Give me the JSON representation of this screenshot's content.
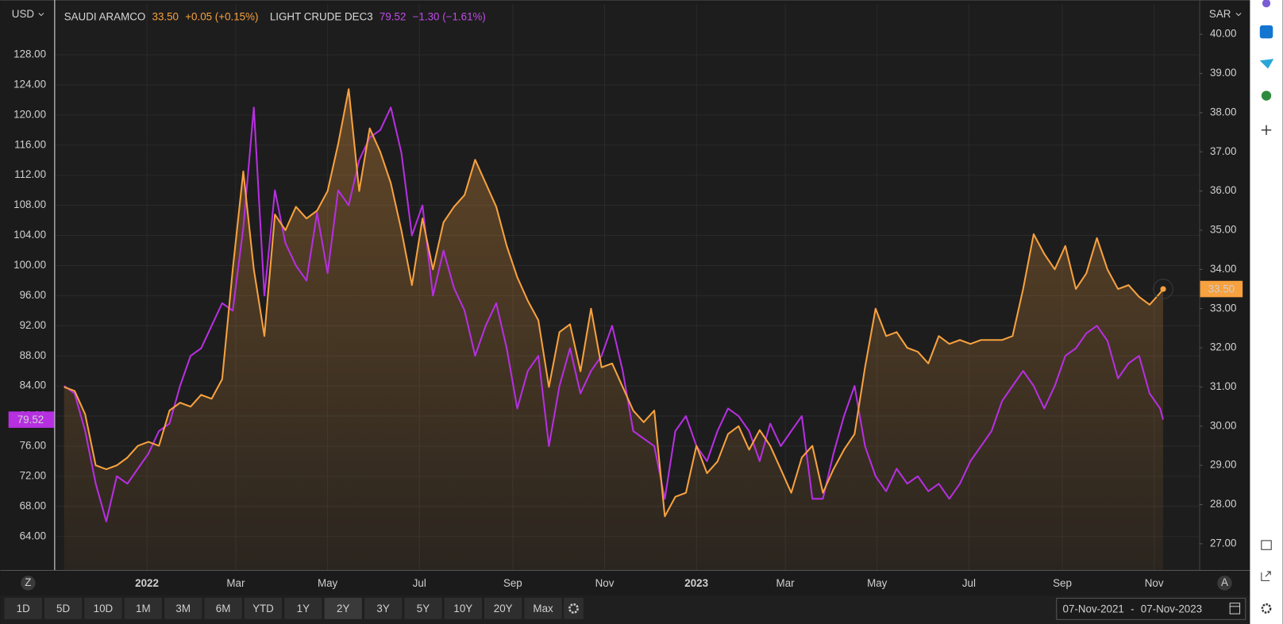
{
  "chart_data": {
    "type": "line",
    "y_label": "USD",
    "y2_label": "SAR",
    "grid": true,
    "x": [
      "2021-11-07",
      "2021-11-14",
      "2021-11-21",
      "2021-11-28",
      "2021-12-05",
      "2021-12-12",
      "2021-12-19",
      "2021-12-26",
      "2022-01-02",
      "2022-01-09",
      "2022-01-16",
      "2022-01-23",
      "2022-01-30",
      "2022-02-06",
      "2022-02-13",
      "2022-02-20",
      "2022-02-27",
      "2022-03-06",
      "2022-03-13",
      "2022-03-20",
      "2022-03-27",
      "2022-04-03",
      "2022-04-10",
      "2022-04-17",
      "2022-04-24",
      "2022-05-01",
      "2022-05-08",
      "2022-05-15",
      "2022-05-22",
      "2022-05-29",
      "2022-06-05",
      "2022-06-12",
      "2022-06-19",
      "2022-06-26",
      "2022-07-03",
      "2022-07-10",
      "2022-07-17",
      "2022-07-24",
      "2022-07-31",
      "2022-08-07",
      "2022-08-14",
      "2022-08-21",
      "2022-08-28",
      "2022-09-04",
      "2022-09-11",
      "2022-09-18",
      "2022-09-25",
      "2022-10-02",
      "2022-10-09",
      "2022-10-16",
      "2022-10-23",
      "2022-10-30",
      "2022-11-06",
      "2022-11-13",
      "2022-11-20",
      "2022-11-27",
      "2022-12-04",
      "2022-12-11",
      "2022-12-18",
      "2022-12-25",
      "2023-01-01",
      "2023-01-08",
      "2023-01-15",
      "2023-01-22",
      "2023-01-29",
      "2023-02-05",
      "2023-02-12",
      "2023-02-19",
      "2023-02-26",
      "2023-03-05",
      "2023-03-12",
      "2023-03-19",
      "2023-03-26",
      "2023-04-02",
      "2023-04-09",
      "2023-04-16",
      "2023-04-23",
      "2023-04-30",
      "2023-05-07",
      "2023-05-14",
      "2023-05-21",
      "2023-05-28",
      "2023-06-04",
      "2023-06-11",
      "2023-06-18",
      "2023-06-25",
      "2023-07-02",
      "2023-07-09",
      "2023-07-16",
      "2023-07-23",
      "2023-07-30",
      "2023-08-06",
      "2023-08-13",
      "2023-08-20",
      "2023-08-27",
      "2023-09-03",
      "2023-09-10",
      "2023-09-17",
      "2023-09-24",
      "2023-10-01",
      "2023-10-08",
      "2023-10-15",
      "2023-10-22",
      "2023-10-29",
      "2023-11-05",
      "2023-11-07"
    ],
    "xlim": [
      "2021-11-01",
      "2023-12-01"
    ],
    "xticks": [
      {
        "value": "2022-01-01",
        "label": "2022"
      },
      {
        "value": "2022-03-01",
        "label": "Mar"
      },
      {
        "value": "2022-05-01",
        "label": "May"
      },
      {
        "value": "2022-07-01",
        "label": "Jul"
      },
      {
        "value": "2022-09-01",
        "label": "Sep"
      },
      {
        "value": "2022-11-01",
        "label": "Nov"
      },
      {
        "value": "2023-01-01",
        "label": "2023"
      },
      {
        "value": "2023-03-01",
        "label": "Mar"
      },
      {
        "value": "2023-05-01",
        "label": "May"
      },
      {
        "value": "2023-07-01",
        "label": "Jul"
      },
      {
        "value": "2023-09-01",
        "label": "Sep"
      },
      {
        "value": "2023-11-01",
        "label": "Nov"
      }
    ],
    "ylim": [
      59.54,
      134.74
    ],
    "yticks": [
      {
        "value": 64,
        "label": "64.00"
      },
      {
        "value": 68,
        "label": "68.00"
      },
      {
        "value": 72,
        "label": "72.00"
      },
      {
        "value": 76,
        "label": "76.00"
      },
      {
        "value": 80,
        "label": "80.00"
      },
      {
        "value": 84,
        "label": "84.00"
      },
      {
        "value": 88,
        "label": "88.00"
      },
      {
        "value": 92,
        "label": "92.00"
      },
      {
        "value": 96,
        "label": "96.00"
      },
      {
        "value": 100,
        "label": "100.00"
      },
      {
        "value": 104,
        "label": "104.00"
      },
      {
        "value": 108,
        "label": "108.00"
      },
      {
        "value": 112,
        "label": "112.00"
      },
      {
        "value": 116,
        "label": "116.00"
      },
      {
        "value": 120,
        "label": "120.00"
      },
      {
        "value": 124,
        "label": "124.00"
      },
      {
        "value": 128,
        "label": "128.00"
      }
    ],
    "y2lim": [
      26.33,
      40.77
    ],
    "y2ticks": [
      {
        "value": 27,
        "label": "27.00"
      },
      {
        "value": 28,
        "label": "28.00"
      },
      {
        "value": 29,
        "label": "29.00"
      },
      {
        "value": 30,
        "label": "30.00"
      },
      {
        "value": 31,
        "label": "31.00"
      },
      {
        "value": 32,
        "label": "32.00"
      },
      {
        "value": 33,
        "label": "33.00"
      },
      {
        "value": 34,
        "label": "34.00"
      },
      {
        "value": 35,
        "label": "35.00"
      },
      {
        "value": 36,
        "label": "36.00"
      },
      {
        "value": 37,
        "label": "37.00"
      },
      {
        "value": 38,
        "label": "38.00"
      },
      {
        "value": 39,
        "label": "39.00"
      },
      {
        "value": 40,
        "label": "40.00"
      }
    ],
    "series": [
      {
        "name": "SAUDI ARAMCO",
        "color": "#f7a13f",
        "axis": "y2",
        "area": true,
        "last": "33.50",
        "change": "+0.05 (+0.15%)",
        "values": [
          31.0,
          30.9,
          30.3,
          29.0,
          28.9,
          29.0,
          29.2,
          29.5,
          29.6,
          29.5,
          30.4,
          30.6,
          30.5,
          30.8,
          30.7,
          31.2,
          34.0,
          36.5,
          34.0,
          32.3,
          35.4,
          35.0,
          35.6,
          35.3,
          35.5,
          36.0,
          37.2,
          38.6,
          36.0,
          37.6,
          37.0,
          36.2,
          35.0,
          33.6,
          35.3,
          34.0,
          35.2,
          35.6,
          35.9,
          36.8,
          36.2,
          35.6,
          34.6,
          33.8,
          33.2,
          32.7,
          31.0,
          32.4,
          32.6,
          31.4,
          33.0,
          31.5,
          31.6,
          31.0,
          30.4,
          30.1,
          30.4,
          27.7,
          28.2,
          28.3,
          29.5,
          28.8,
          29.1,
          29.8,
          30.0,
          29.4,
          29.9,
          29.5,
          28.9,
          28.3,
          29.2,
          29.5,
          28.3,
          28.9,
          29.4,
          29.8,
          31.5,
          33.0,
          32.3,
          32.4,
          32.0,
          31.9,
          31.6,
          32.3,
          32.1,
          32.2,
          32.1,
          32.2,
          32.2,
          32.2,
          32.3,
          33.5,
          34.9,
          34.4,
          34.0,
          34.6,
          33.5,
          33.9,
          34.8,
          34.0,
          33.5,
          33.6,
          33.3,
          33.1,
          33.4,
          33.5
        ]
      },
      {
        "name": "LIGHT CRUDE DEC3",
        "color": "#b62fe0",
        "last": "79.52",
        "change": "−1.30 (−1.61%)",
        "values": [
          84,
          83,
          78,
          71,
          66,
          72,
          71,
          73,
          75,
          78,
          79,
          84,
          88,
          89,
          92,
          95,
          94,
          105,
          121,
          96,
          110,
          103,
          100,
          98,
          107,
          99,
          110,
          108,
          114,
          117,
          118,
          121,
          115,
          104,
          108,
          96,
          102,
          97,
          94,
          88,
          92,
          95,
          89,
          81,
          86,
          88,
          76,
          84,
          89,
          83,
          86,
          88,
          92,
          86,
          78,
          77,
          76,
          69,
          78,
          80,
          76,
          74,
          78,
          81,
          80,
          78,
          74,
          79,
          76,
          78,
          80,
          69,
          69,
          75,
          80,
          84,
          76,
          72,
          70,
          73,
          71,
          72,
          70,
          71,
          69,
          71,
          74,
          76,
          78,
          82,
          84,
          86,
          84,
          81,
          84,
          88,
          89,
          91,
          92,
          90,
          85,
          87,
          88,
          83,
          81,
          79.52
        ]
      }
    ]
  },
  "toolbar": {
    "ranges": [
      "1D",
      "5D",
      "10D",
      "1M",
      "3M",
      "6M",
      "YTD",
      "1Y",
      "2Y",
      "3Y",
      "5Y",
      "10Y",
      "20Y",
      "Max"
    ],
    "active": 8,
    "zoom_left": "Z",
    "zoom_right": "A",
    "date_from": "07-Nov-2021",
    "date_sep": "-",
    "date_to": "07-Nov-2023"
  }
}
